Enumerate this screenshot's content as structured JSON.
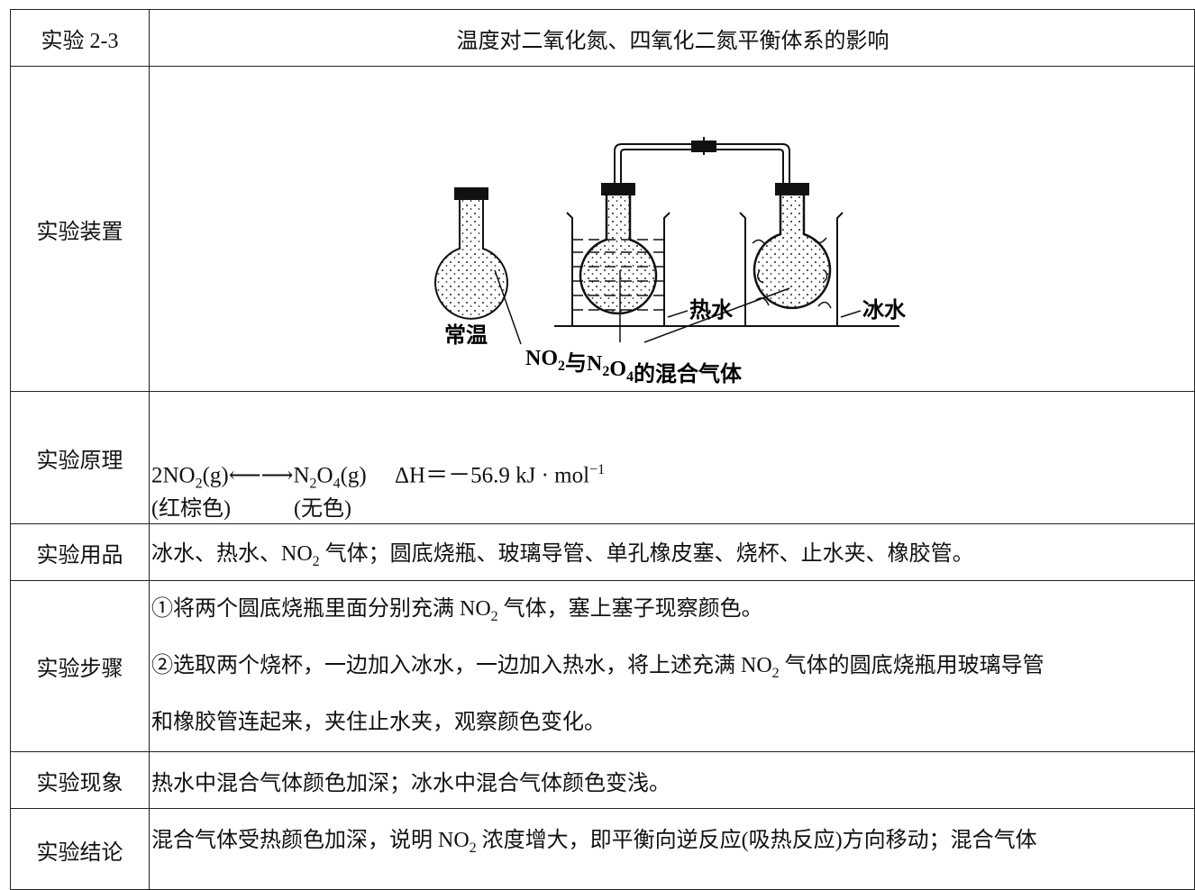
{
  "rows": [
    {
      "label": "实验 2-3",
      "lines": [
        [
          "温度对二氧化氮、四氧化二氮平衡体系的影响"
        ]
      ]
    },
    {
      "label": "实验装置",
      "figure": {
        "room": "常温",
        "hot": "热水",
        "ice": "冰水",
        "gas": [
          "NO",
          {
            "sub": "2"
          },
          "与N",
          {
            "sub": "2"
          },
          "O",
          {
            "sub": "4"
          },
          "的混合气体"
        ]
      }
    },
    {
      "label": "实验原理",
      "lines": [
        [
          "2NO",
          {
            "sub": "2"
          },
          "(g)⟵⟶N",
          {
            "sub": "2"
          },
          "O",
          {
            "sub": "4"
          },
          "(g)　 ΔH＝－56.9 kJ · mol",
          {
            "sup": "−1"
          }
        ],
        [
          "(红棕色)",
          "(无色)"
        ]
      ]
    },
    {
      "label": "实验用品",
      "lines": [
        [
          "冰水、热水、NO",
          {
            "sub": "2"
          },
          " 气体；圆底烧瓶、玻璃导管、单孔橡皮塞、烧杯、止水夹、橡胶管。"
        ]
      ]
    },
    {
      "label": "实验步骤",
      "lines": [
        [
          "①将两个圆底烧瓶里面分别充满 NO",
          {
            "sub": "2"
          },
          " 气体，塞上塞子现察颜色。"
        ],
        [
          "②选取两个烧杯，一边加入冰水，一边加入热水，将上述充满 NO",
          {
            "sub": "2"
          },
          " 气体的圆底烧瓶用玻璃导管"
        ],
        [
          "和橡胶管连起来，夹住止水夹，观察颜色变化。"
        ]
      ]
    },
    {
      "label": "实验现象",
      "lines": [
        [
          "热水中混合气体颜色加深；冰水中混合气体颜色变浅。"
        ]
      ]
    },
    {
      "label": "实验结论",
      "lines": [
        [
          "混合气体受热颜色加深，说明 NO",
          {
            "sub": "2"
          },
          " 浓度增大，即平衡向逆反应(吸热反应)方向移动；混合气体"
        ]
      ]
    }
  ]
}
